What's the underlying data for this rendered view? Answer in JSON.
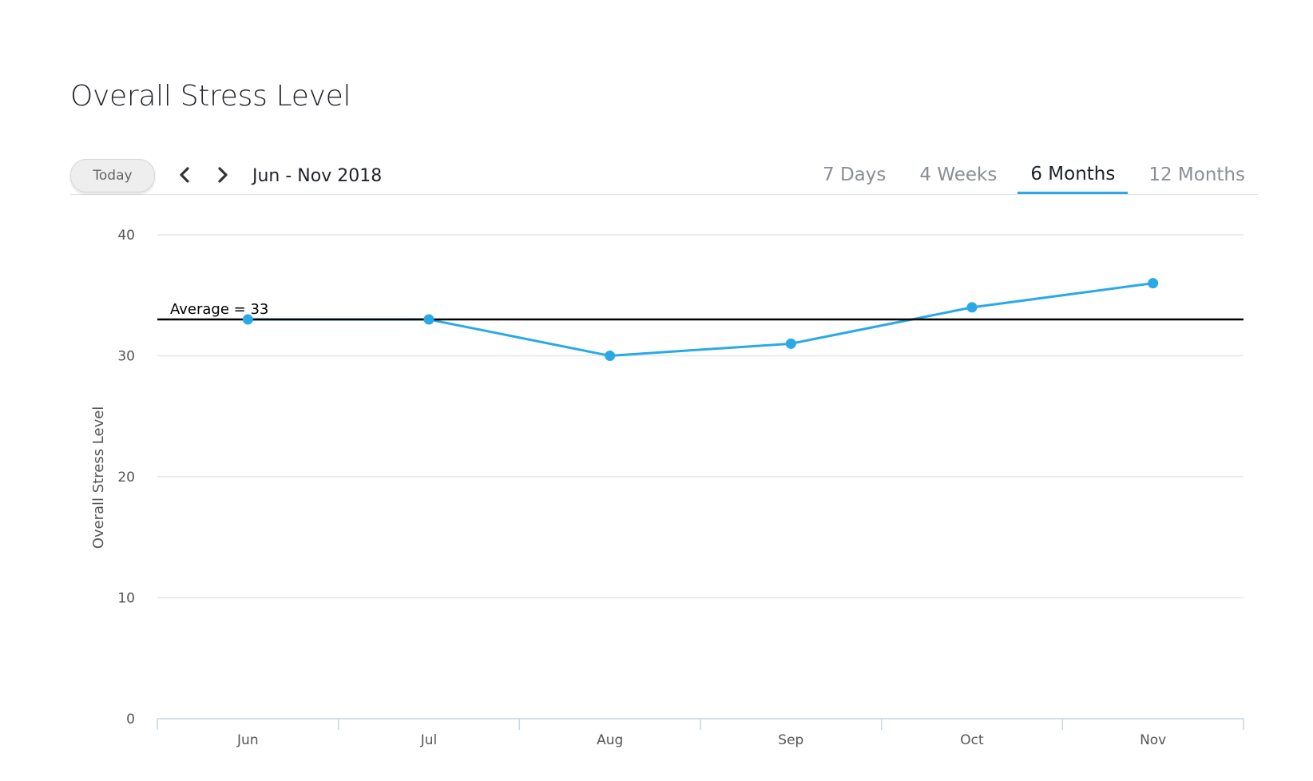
{
  "header": {
    "title": "Overall Stress Level"
  },
  "toolbar": {
    "today_label": "Today",
    "prev_icon": "chevron-left-icon",
    "next_icon": "chevron-right-icon",
    "date_range": "Jun - Nov 2018",
    "tabs": [
      {
        "label": "7 Days",
        "active": false
      },
      {
        "label": "4 Weeks",
        "active": false
      },
      {
        "label": "6 Months",
        "active": true
      },
      {
        "label": "12 Months",
        "active": false
      }
    ],
    "accent_color": "#29a9e6"
  },
  "chart_data": {
    "type": "line",
    "title": "",
    "xlabel": "",
    "ylabel": "Overall Stress Level",
    "categories": [
      "Jun",
      "Jul",
      "Aug",
      "Sep",
      "Oct",
      "Nov"
    ],
    "series": [
      {
        "values": [
          33,
          33,
          30,
          31,
          34,
          36
        ],
        "color": "#29a9e6"
      }
    ],
    "ylim": [
      0,
      40
    ],
    "yticks": [
      0,
      10,
      20,
      30,
      40
    ],
    "grid": true,
    "reference_line": {
      "value": 33,
      "label": "Average = 33",
      "color": "#000000"
    }
  }
}
